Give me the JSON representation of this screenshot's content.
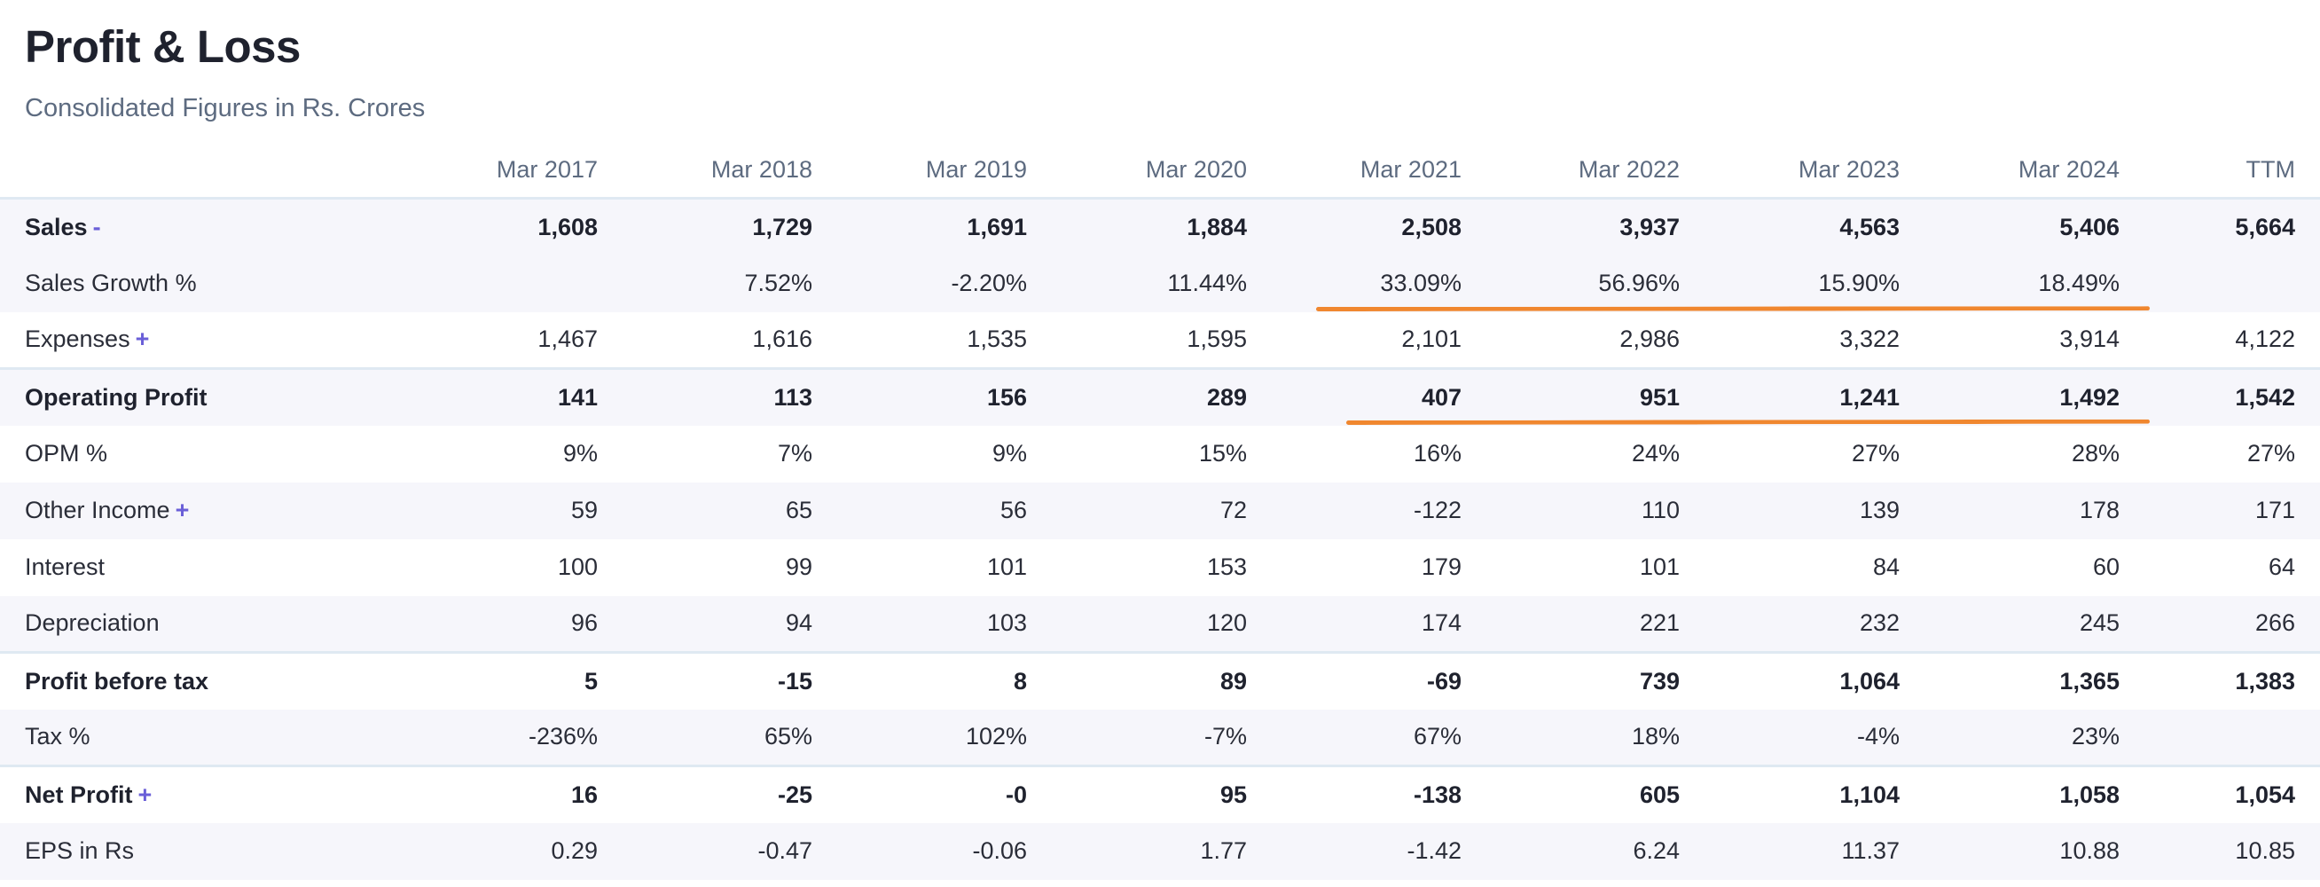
{
  "header": {
    "title": "Profit & Loss",
    "subtitle": "Consolidated Figures in Rs. Crores"
  },
  "table": {
    "columns": [
      "Mar 2017",
      "Mar 2018",
      "Mar 2019",
      "Mar 2020",
      "Mar 2021",
      "Mar 2022",
      "Mar 2023",
      "Mar 2024",
      "TTM"
    ],
    "rows": [
      {
        "label": "Sales",
        "toggle": "-",
        "values": [
          "1,608",
          "1,729",
          "1,691",
          "1,884",
          "2,508",
          "3,937",
          "4,563",
          "5,406",
          "5,664"
        ]
      },
      {
        "label": "Sales Growth %",
        "toggle": "",
        "values": [
          "",
          "7.52%",
          "-2.20%",
          "11.44%",
          "33.09%",
          "56.96%",
          "15.90%",
          "18.49%",
          ""
        ]
      },
      {
        "label": "Expenses",
        "toggle": "+",
        "values": [
          "1,467",
          "1,616",
          "1,535",
          "1,595",
          "2,101",
          "2,986",
          "3,322",
          "3,914",
          "4,122"
        ]
      },
      {
        "label": "Operating Profit",
        "toggle": "",
        "values": [
          "141",
          "113",
          "156",
          "289",
          "407",
          "951",
          "1,241",
          "1,492",
          "1,542"
        ]
      },
      {
        "label": "OPM %",
        "toggle": "",
        "values": [
          "9%",
          "7%",
          "9%",
          "15%",
          "16%",
          "24%",
          "27%",
          "28%",
          "27%"
        ]
      },
      {
        "label": "Other Income",
        "toggle": "+",
        "values": [
          "59",
          "65",
          "56",
          "72",
          "-122",
          "110",
          "139",
          "178",
          "171"
        ]
      },
      {
        "label": "Interest",
        "toggle": "",
        "values": [
          "100",
          "99",
          "101",
          "153",
          "179",
          "101",
          "84",
          "60",
          "64"
        ]
      },
      {
        "label": "Depreciation",
        "toggle": "",
        "values": [
          "96",
          "94",
          "103",
          "120",
          "174",
          "221",
          "232",
          "245",
          "266"
        ]
      },
      {
        "label": "Profit before tax",
        "toggle": "",
        "values": [
          "5",
          "-15",
          "8",
          "89",
          "-69",
          "739",
          "1,064",
          "1,365",
          "1,383"
        ]
      },
      {
        "label": "Tax %",
        "toggle": "",
        "values": [
          "-236%",
          "65%",
          "102%",
          "-7%",
          "67%",
          "18%",
          "-4%",
          "23%",
          ""
        ]
      },
      {
        "label": "Net Profit",
        "toggle": "+",
        "values": [
          "16",
          "-25",
          "-0",
          "95",
          "-138",
          "605",
          "1,104",
          "1,058",
          "1,054"
        ]
      },
      {
        "label": "EPS in Rs",
        "toggle": "",
        "values": [
          "0.29",
          "-0.47",
          "-0.06",
          "1.77",
          "-1.42",
          "6.24",
          "11.37",
          "10.88",
          "10.85"
        ]
      }
    ]
  },
  "colors": {
    "highlight": "#f0872f",
    "toggle": "#6a5fd8",
    "row_alt": "#f6f6fb"
  }
}
